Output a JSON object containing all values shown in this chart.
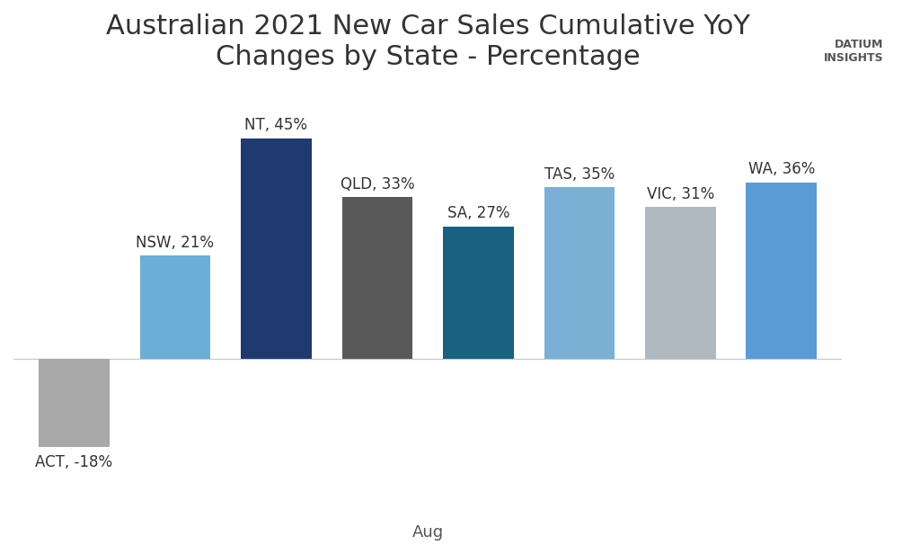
{
  "title": "Australian 2021 New Car Sales Cumulative YoY\nChanges by State - Percentage",
  "categories": [
    "ACT",
    "NSW",
    "NT",
    "QLD",
    "SA",
    "TAS",
    "VIC",
    "WA"
  ],
  "values": [
    -18,
    21,
    45,
    33,
    27,
    35,
    31,
    36
  ],
  "bar_colors": [
    "#a8a8a8",
    "#6baed6",
    "#1f3a6e",
    "#595959",
    "#1a6080",
    "#7bafd4",
    "#b0b8c0",
    "#5b9bd5"
  ],
  "labels": [
    "ACT, -18%",
    "NSW, 21%",
    "NT, 45%",
    "QLD, 33%",
    "SA, 27%",
    "TAS, 35%",
    "VIC, 31%",
    "WA, 36%"
  ],
  "xlabel": "Aug",
  "ylabel": "",
  "ylim": [
    -30,
    55
  ],
  "background_color": "#ffffff",
  "title_fontsize": 22,
  "label_fontsize": 12,
  "xlabel_fontsize": 13
}
